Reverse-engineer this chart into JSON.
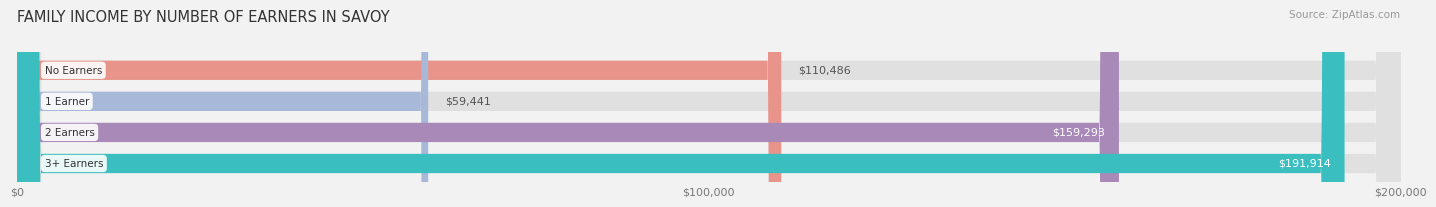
{
  "title": "FAMILY INCOME BY NUMBER OF EARNERS IN SAVOY",
  "source": "Source: ZipAtlas.com",
  "categories": [
    "No Earners",
    "1 Earner",
    "2 Earners",
    "3+ Earners"
  ],
  "values": [
    110486,
    59441,
    159293,
    191914
  ],
  "bar_colors": [
    "#E8948A",
    "#A8B8D8",
    "#A889B8",
    "#3BBEC0"
  ],
  "label_colors": [
    "#555555",
    "#555555",
    "#ffffff",
    "#ffffff"
  ],
  "xlim": [
    0,
    200000
  ],
  "xticks": [
    0,
    100000,
    200000
  ],
  "xtick_labels": [
    "$0",
    "$100,000",
    "$200,000"
  ],
  "bar_height": 0.62,
  "background_color": "#f2f2f2",
  "bar_bg_color": "#e0e0e0",
  "title_fontsize": 10.5,
  "source_fontsize": 7.5,
  "label_fontsize": 8,
  "tick_fontsize": 8,
  "category_fontsize": 7.5
}
